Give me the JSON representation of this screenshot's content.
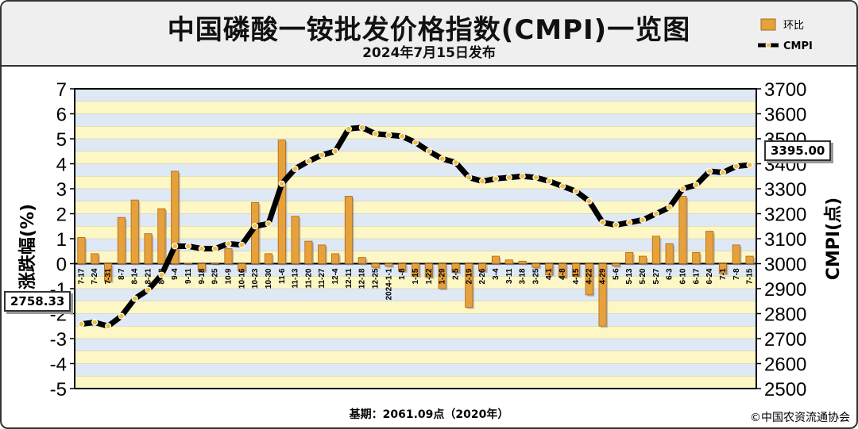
{
  "header": {
    "title": "中国磷酸一铵批发价格指数(CMPI)一览图",
    "subtitle": "2024年7月15日发布"
  },
  "legend": {
    "bar_label": "环比",
    "line_label": "CMPI"
  },
  "callouts": {
    "start": "2758.33",
    "end": "3395.00"
  },
  "footer": {
    "base": "基期：2061.09点（2020年）",
    "copyright": "©中国农资流通协会"
  },
  "colors": {
    "bar": "#e7a13a",
    "bar_dark": "#a8681a",
    "line": "#000000",
    "marker": "#f0c040",
    "band_yellow": "#fdf7c6",
    "band_blue": "#dfe9f6"
  },
  "chart_data": {
    "type": "bar+line",
    "left_axis_label": "涨跌幅(%)",
    "right_axis_label": "CMPI(点)",
    "left_ylim": [
      -5,
      7
    ],
    "right_ylim": [
      2500,
      3700
    ],
    "left_ticks": [
      7,
      6,
      5,
      4,
      3,
      2,
      1,
      0,
      -1,
      -2,
      -3,
      -4,
      -5
    ],
    "right_ticks": [
      3700,
      3600,
      3500,
      3400,
      3300,
      3200,
      3100,
      3000,
      2900,
      2800,
      2700,
      2600,
      2500
    ],
    "categories": [
      "7-17",
      "7-24",
      "7-31",
      "8-7",
      "8-14",
      "8-21",
      "8-28",
      "9-4",
      "9-11",
      "9-18",
      "9-25",
      "10-9",
      "10-16",
      "10-23",
      "10-30",
      "11-6",
      "11-13",
      "11-20",
      "11-27",
      "12-4",
      "12-11",
      "12-18",
      "12-25",
      "2024-1-1",
      "1-8",
      "1-15",
      "1-22",
      "1-29",
      "2-5",
      "2-19",
      "2-26",
      "3-4",
      "3-11",
      "3-18",
      "3-25",
      "4-1",
      "4-8",
      "4-15",
      "4-22",
      "4-29",
      "5-6",
      "5-13",
      "5-20",
      "5-27",
      "6-3",
      "6-10",
      "6-17",
      "6-24",
      "7-1",
      "7-8",
      "7-15"
    ],
    "series": [
      {
        "name": "环比",
        "values": [
          1.05,
          0.4,
          -0.7,
          1.85,
          2.55,
          1.2,
          2.2,
          3.7,
          0.02,
          -0.3,
          0.03,
          0.6,
          -0.3,
          2.45,
          0.4,
          4.95,
          1.9,
          0.9,
          0.75,
          0.4,
          2.7,
          0.25,
          -0.15,
          -0.1,
          -0.3,
          -0.5,
          -0.55,
          -1.0,
          -0.35,
          -1.75,
          -0.3,
          0.3,
          0.15,
          0.1,
          -0.15,
          -0.45,
          -0.55,
          -0.5,
          -1.25,
          -2.5,
          -0.1,
          0.45,
          0.3,
          1.1,
          0.8,
          2.7,
          0.45,
          1.3,
          -0.4,
          0.75,
          0.3
        ]
      },
      {
        "name": "CMPI",
        "values": [
          2758.33,
          2765,
          2750,
          2790,
          2860,
          2895,
          2955,
          3070,
          3070,
          3060,
          3060,
          3080,
          3075,
          3150,
          3160,
          3320,
          3380,
          3410,
          3435,
          3450,
          3540,
          3545,
          3520,
          3515,
          3510,
          3485,
          3450,
          3420,
          3405,
          3345,
          3330,
          3340,
          3345,
          3350,
          3345,
          3330,
          3310,
          3290,
          3250,
          3165,
          3155,
          3165,
          3175,
          3200,
          3225,
          3300,
          3315,
          3370,
          3365,
          3390,
          3395
        ]
      }
    ]
  }
}
